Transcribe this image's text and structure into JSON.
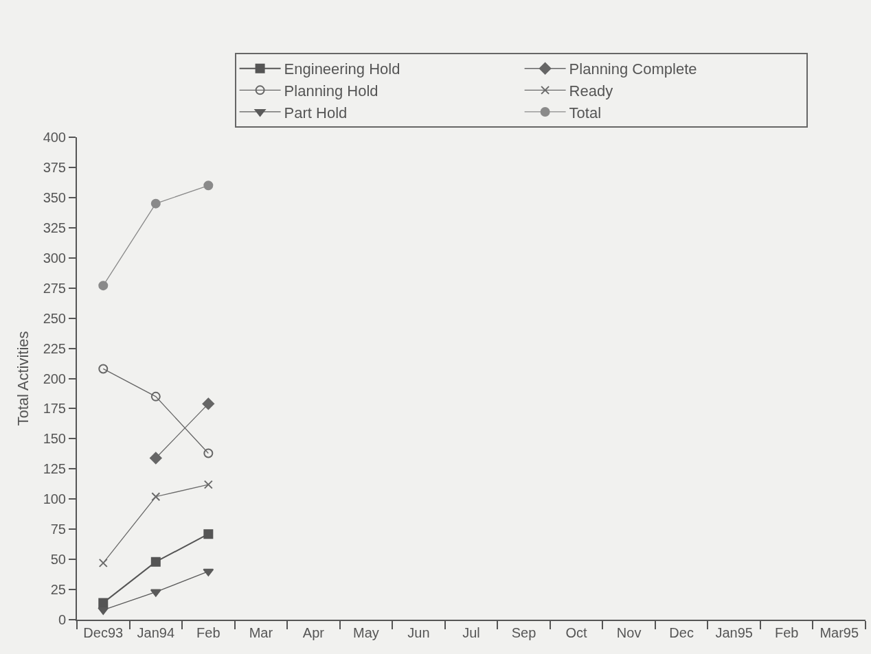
{
  "chart_data": {
    "type": "line",
    "ylabel": "Total Activities",
    "categories": [
      "Dec93",
      "Jan94",
      "Feb",
      "Mar",
      "Apr",
      "May",
      "Jun",
      "Jul",
      "Sep",
      "Oct",
      "Nov",
      "Dec",
      "Jan95",
      "Feb",
      "Mar95"
    ],
    "ylim": [
      0,
      400
    ],
    "yticks": [
      0,
      25,
      50,
      75,
      100,
      125,
      150,
      175,
      200,
      225,
      250,
      275,
      300,
      325,
      350,
      375,
      400
    ],
    "grid": false,
    "legend": "top",
    "series": [
      {
        "name": "Engineering Hold",
        "color": "#555555",
        "marker": "square",
        "values": [
          14,
          48,
          71,
          null,
          null,
          null,
          null,
          null,
          null,
          null,
          null,
          null,
          null,
          null,
          null
        ]
      },
      {
        "name": "Planning Complete",
        "color": "#666666",
        "marker": "diamond",
        "values": [
          null,
          134,
          179,
          null,
          null,
          null,
          null,
          null,
          null,
          null,
          null,
          null,
          null,
          null,
          null
        ]
      },
      {
        "name": "Planning Hold",
        "color": "#666666",
        "marker": "circle",
        "values": [
          208,
          185,
          138,
          null,
          null,
          null,
          null,
          null,
          null,
          null,
          null,
          null,
          null,
          null,
          null
        ]
      },
      {
        "name": "Ready",
        "color": "#6a6a6a",
        "marker": "cross",
        "values": [
          47,
          102,
          112,
          null,
          null,
          null,
          null,
          null,
          null,
          null,
          null,
          null,
          null,
          null,
          null
        ]
      },
      {
        "name": "Part Hold",
        "color": "#5a5a5a",
        "marker": "triangle",
        "values": [
          8,
          23,
          40,
          null,
          null,
          null,
          null,
          null,
          null,
          null,
          null,
          null,
          null,
          null,
          null
        ]
      },
      {
        "name": "Total",
        "color": "#8a8a8a",
        "marker": "circle",
        "values": [
          277,
          345,
          360,
          null,
          null,
          null,
          null,
          null,
          null,
          null,
          null,
          null,
          null,
          null,
          null
        ]
      }
    ]
  }
}
